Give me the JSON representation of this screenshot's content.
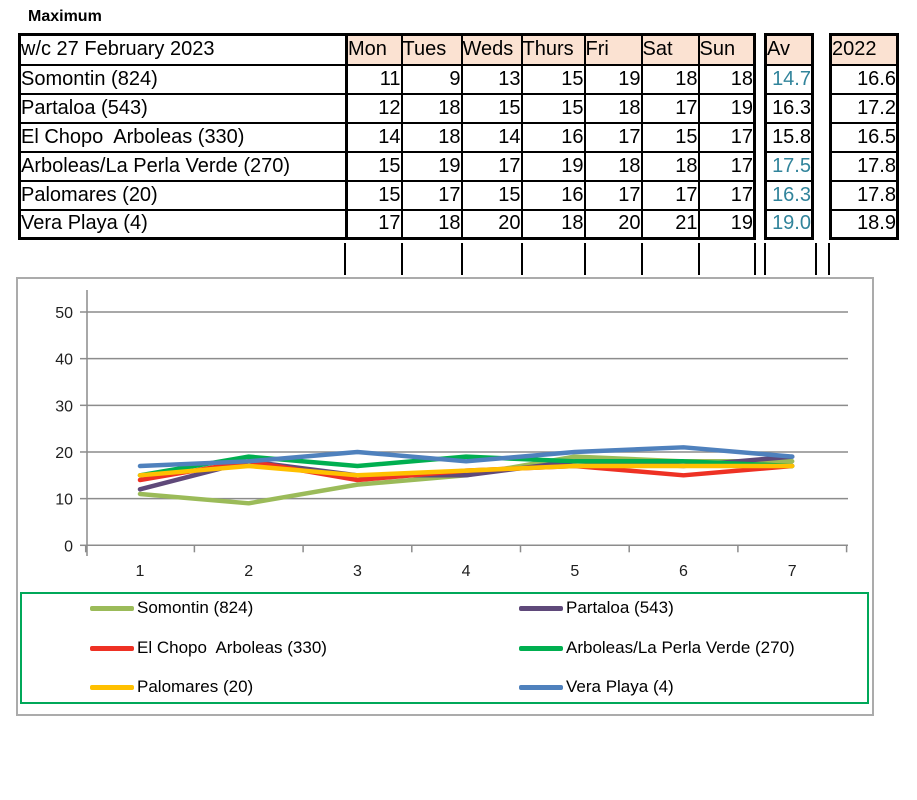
{
  "title": "Maximum",
  "table": {
    "week_label": "w/c 27 February 2023",
    "day_headers": [
      "Mon",
      "Tues",
      "Weds",
      "Thurs",
      "Fri",
      "Sat",
      "Sun"
    ],
    "av_header": "Av",
    "year_header": "2022",
    "rows": [
      {
        "name": "Somontin (824)",
        "values": [
          11,
          9,
          13,
          15,
          19,
          18,
          18
        ],
        "av": "14.7",
        "av_color": "#31849B",
        "year": "16.6"
      },
      {
        "name": "Partaloa (543)",
        "values": [
          12,
          18,
          15,
          15,
          18,
          17,
          19
        ],
        "av": "16.3",
        "av_color": "#000000",
        "year": "17.2"
      },
      {
        "name": "El Chopo  Arboleas (330)",
        "values": [
          14,
          18,
          14,
          16,
          17,
          15,
          17
        ],
        "av": "15.8",
        "av_color": "#000000",
        "year": "16.5"
      },
      {
        "name": "Arboleas/La Perla Verde (270)",
        "values": [
          15,
          19,
          17,
          19,
          18,
          18,
          17
        ],
        "av": "17.5",
        "av_color": "#31849B",
        "year": "17.8"
      },
      {
        "name": "Palomares (20)",
        "values": [
          15,
          17,
          15,
          16,
          17,
          17,
          17
        ],
        "av": "16.3",
        "av_color": "#31849B",
        "year": "17.8"
      },
      {
        "name": "Vera Playa (4)",
        "values": [
          17,
          18,
          20,
          18,
          20,
          21,
          19
        ],
        "av": "19.0",
        "av_color": "#31849B",
        "year": "18.9"
      }
    ]
  },
  "chart_data": {
    "type": "line",
    "title": "",
    "xlabel": "",
    "ylabel": "",
    "x": [
      1,
      2,
      3,
      4,
      5,
      6,
      7
    ],
    "ylim": [
      0,
      50
    ],
    "yticks": [
      0,
      10,
      20,
      30,
      40,
      50
    ],
    "grid": true,
    "legend_position": "bottom",
    "series": [
      {
        "key": "somontin",
        "name": "Somontin (824)",
        "color": "#9BBB59",
        "values": [
          11,
          9,
          13,
          15,
          19,
          18,
          18
        ]
      },
      {
        "key": "partaloa",
        "name": "Partaloa (543)",
        "color": "#5F497A",
        "values": [
          12,
          18,
          15,
          15,
          18,
          17,
          19
        ]
      },
      {
        "key": "el-chopo",
        "name": "El Chopo  Arboleas (330)",
        "color": "#EE3124",
        "values": [
          14,
          18,
          14,
          16,
          17,
          15,
          17
        ]
      },
      {
        "key": "arboleas-perla",
        "name": "Arboleas/La Perla Verde (270)",
        "color": "#00AF50",
        "values": [
          15,
          19,
          17,
          19,
          18,
          18,
          17
        ]
      },
      {
        "key": "palomares",
        "name": "Palomares (20)",
        "color": "#FFC000",
        "values": [
          15,
          17,
          15,
          16,
          17,
          17,
          17
        ]
      },
      {
        "key": "vera-playa",
        "name": "Vera Playa (4)",
        "color": "#4F81BD",
        "values": [
          17,
          18,
          20,
          18,
          20,
          21,
          19
        ]
      }
    ]
  },
  "colors": {
    "header_fill": "#FBE2D2",
    "average_text": "#31849B",
    "chart_frame": "#ABABAB",
    "gridline": "#8C8C8C",
    "legend_border": "#00A859",
    "table_border": "#000000"
  }
}
